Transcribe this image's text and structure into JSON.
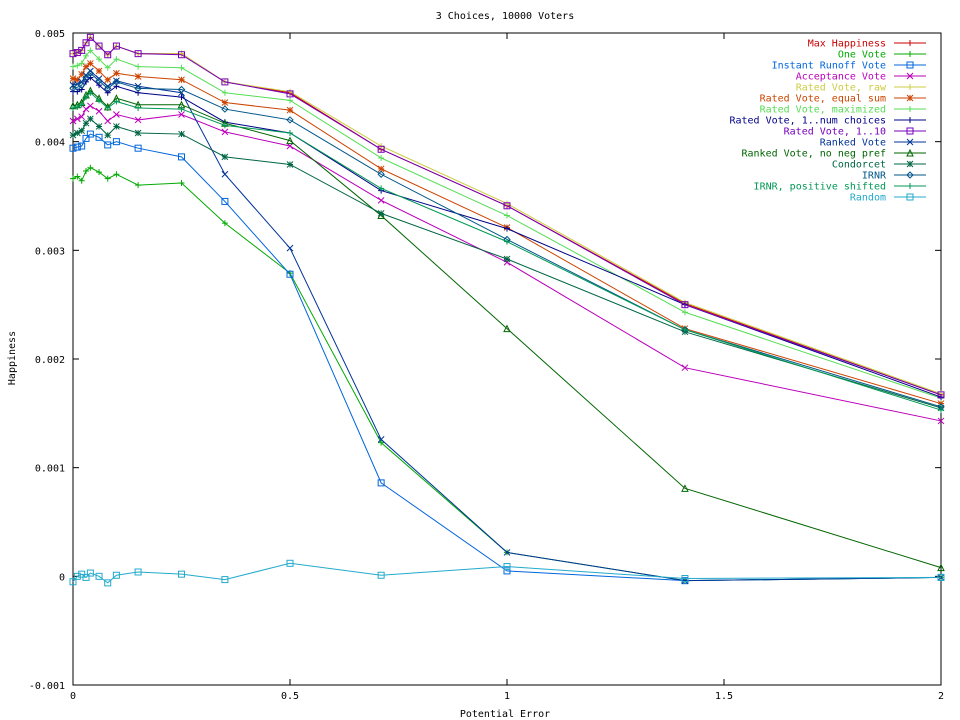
{
  "chart_data": {
    "type": "line",
    "title": "3 Choices, 10000 Voters",
    "xlabel": "Potential Error",
    "ylabel": "Happiness",
    "xlim": [
      0,
      2
    ],
    "ylim": [
      -0.001,
      0.005
    ],
    "xticks": [
      0,
      0.5,
      1,
      1.5,
      2
    ],
    "xtick_labels": [
      "0",
      "0.5",
      "1",
      "1.5",
      "2"
    ],
    "yticks": [
      -0.001,
      0,
      0.001,
      0.002,
      0.003,
      0.004,
      0.005
    ],
    "ytick_labels": [
      "-0.001",
      "0",
      "0.001",
      "0.002",
      "0.003",
      "0.004",
      "0.005"
    ],
    "grid": false,
    "legend_position": "top-right",
    "x": [
      0,
      0.01,
      0.02,
      0.03,
      0.04,
      0.06,
      0.08,
      0.1,
      0.15,
      0.25,
      0.35,
      0.5,
      0.71,
      1.0,
      1.41,
      2.0
    ],
    "series": [
      {
        "name": "Max Happiness",
        "color": "#cc0000",
        "marker": "plus",
        "values": [
          0.00481,
          0.00482,
          0.00484,
          0.00491,
          0.00496,
          0.00488,
          0.0048,
          0.00488,
          0.00481,
          0.00481,
          0.00455,
          0.00445,
          0.00393,
          0.00341,
          0.00251,
          0.00167
        ]
      },
      {
        "name": "One Vote",
        "color": "#00aa00",
        "marker": "plus",
        "values": [
          0.00366,
          0.00368,
          0.00364,
          0.00373,
          0.00376,
          0.00372,
          0.00366,
          0.0037,
          0.0036,
          0.00362,
          0.00325,
          0.00279,
          0.00123,
          0.00022,
          -4e-05,
          -1e-05
        ]
      },
      {
        "name": "Instant Runoff Vote",
        "color": "#0066dd",
        "marker": "square",
        "values": [
          0.00394,
          0.00395,
          0.00396,
          0.00403,
          0.00407,
          0.00404,
          0.00397,
          0.004,
          0.00394,
          0.00386,
          0.00345,
          0.00278,
          0.00086,
          5e-05,
          -4e-05,
          -1e-05
        ]
      },
      {
        "name": "Acceptance Vote",
        "color": "#bb00bb",
        "marker": "cross",
        "values": [
          0.00419,
          0.00421,
          0.00423,
          0.0043,
          0.00433,
          0.00428,
          0.00419,
          0.00425,
          0.0042,
          0.00425,
          0.00409,
          0.00396,
          0.00346,
          0.00289,
          0.00192,
          0.00143
        ]
      },
      {
        "name": "Rated Vote, raw",
        "color": "#cccc44",
        "marker": "plus",
        "values": [
          0.00481,
          0.00482,
          0.00484,
          0.00491,
          0.00496,
          0.00488,
          0.0048,
          0.00488,
          0.00481,
          0.00481,
          0.00455,
          0.00446,
          0.00396,
          0.00343,
          0.00252,
          0.00168
        ]
      },
      {
        "name": "Rated Vote, equal sum",
        "color": "#cc4400",
        "marker": "star",
        "values": [
          0.00458,
          0.00457,
          0.00462,
          0.00469,
          0.00472,
          0.00465,
          0.00457,
          0.00463,
          0.0046,
          0.00457,
          0.00436,
          0.00429,
          0.00375,
          0.00321,
          0.00228,
          0.00159
        ]
      },
      {
        "name": "Rated Vote, maximized",
        "color": "#55dd55",
        "marker": "plus",
        "values": [
          0.00469,
          0.0047,
          0.00472,
          0.00479,
          0.00484,
          0.00476,
          0.00468,
          0.00476,
          0.00469,
          0.00468,
          0.00445,
          0.00438,
          0.00385,
          0.00332,
          0.00243,
          0.00164
        ]
      },
      {
        "name": "Rated Vote, 1..num choices",
        "color": "#000088",
        "marker": "plus",
        "values": [
          0.00446,
          0.00446,
          0.00448,
          0.00455,
          0.00459,
          0.00452,
          0.00445,
          0.00451,
          0.00445,
          0.00441,
          0.00418,
          0.00408,
          0.00355,
          0.0032,
          0.0025,
          0.00165
        ]
      },
      {
        "name": "Rated Vote, 1..10",
        "color": "#7700bb",
        "marker": "square",
        "values": [
          0.00481,
          0.00482,
          0.00484,
          0.00491,
          0.00496,
          0.00488,
          0.0048,
          0.00488,
          0.00481,
          0.0048,
          0.00455,
          0.00444,
          0.00393,
          0.00341,
          0.0025,
          0.00167
        ]
      },
      {
        "name": "Ranked Vote",
        "color": "#003399",
        "marker": "cross",
        "values": [
          0.00452,
          0.00453,
          0.00455,
          0.00461,
          0.00465,
          0.00458,
          0.00451,
          0.00456,
          0.00451,
          0.00445,
          0.0037,
          0.00302,
          0.00126,
          0.00022,
          -4e-05,
          -1e-05
        ]
      },
      {
        "name": "Ranked Vote, no neg pref",
        "color": "#006600",
        "marker": "triangle",
        "values": [
          0.00433,
          0.00434,
          0.00436,
          0.00443,
          0.00447,
          0.0044,
          0.00432,
          0.0044,
          0.00434,
          0.00434,
          0.00417,
          0.00401,
          0.00332,
          0.00228,
          0.00081,
          8e-05
        ]
      },
      {
        "name": "Condorcet",
        "color": "#006644",
        "marker": "star",
        "values": [
          0.00406,
          0.00408,
          0.0041,
          0.00417,
          0.00421,
          0.00414,
          0.00406,
          0.00414,
          0.00408,
          0.00407,
          0.00386,
          0.00379,
          0.00334,
          0.00292,
          0.00225,
          0.00155
        ]
      },
      {
        "name": "IRNR",
        "color": "#005588",
        "marker": "diamond",
        "values": [
          0.00449,
          0.0045,
          0.00452,
          0.00459,
          0.00463,
          0.00456,
          0.00449,
          0.00455,
          0.00449,
          0.00448,
          0.0043,
          0.0042,
          0.0037,
          0.0031,
          0.00227,
          0.00156
        ]
      },
      {
        "name": "IRNR, positive shifted",
        "color": "#009955",
        "marker": "plus",
        "values": [
          0.00431,
          0.00432,
          0.00434,
          0.00441,
          0.00445,
          0.00438,
          0.00431,
          0.00437,
          0.00431,
          0.0043,
          0.00415,
          0.00408,
          0.00357,
          0.00308,
          0.00227,
          0.00153
        ]
      },
      {
        "name": "Random",
        "color": "#22aacc",
        "marker": "square",
        "values": [
          -5e-05,
          0.0,
          2e-05,
          -1e-05,
          3e-05,
          0.0,
          -6e-05,
          1e-05,
          4e-05,
          2e-05,
          -3e-05,
          0.00012,
          1e-05,
          9e-05,
          -2e-05,
          -1e-05
        ]
      }
    ]
  }
}
